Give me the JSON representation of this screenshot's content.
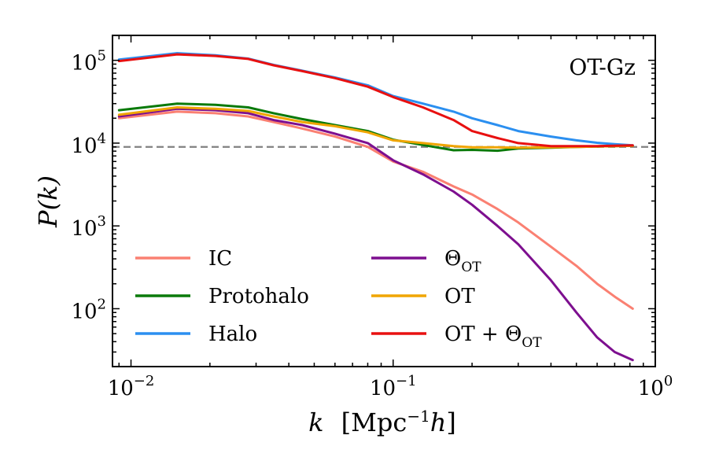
{
  "chart_data": {
    "type": "line",
    "annotation": "OT-Gz",
    "xlabel": {
      "main": "k",
      "bracket_open": "[Mpc",
      "sup": "−1",
      "italic": "h",
      "bracket_close": "]"
    },
    "ylabel": "P(k)",
    "xscale": "log",
    "yscale": "log",
    "xlim": [
      0.0085,
      1.0
    ],
    "ylim": [
      20,
      200000
    ],
    "x_ticks": [
      {
        "value": 0.01,
        "base": "10",
        "exp": "−2"
      },
      {
        "value": 0.1,
        "base": "10",
        "exp": "−1"
      },
      {
        "value": 1.0,
        "base": "10",
        "exp": "0"
      }
    ],
    "y_ticks": [
      {
        "value": 100,
        "base": "10",
        "exp": "2"
      },
      {
        "value": 1000,
        "base": "10",
        "exp": "3"
      },
      {
        "value": 10000,
        "base": "10",
        "exp": "4"
      },
      {
        "value": 100000,
        "base": "10",
        "exp": "5"
      }
    ],
    "reference_line": {
      "y": 9000,
      "style": "dashed",
      "color": "#808080"
    },
    "legend_position": "lower-left",
    "x": [
      0.009,
      0.015,
      0.021,
      0.028,
      0.035,
      0.045,
      0.06,
      0.08,
      0.1,
      0.13,
      0.17,
      0.2,
      0.25,
      0.3,
      0.4,
      0.5,
      0.6,
      0.7,
      0.82
    ],
    "series": [
      {
        "name": "IC",
        "label": "IC",
        "color": "#fa8072",
        "values": [
          20000,
          24000,
          23000,
          21000,
          18000,
          15000,
          12000,
          9000,
          6000,
          4500,
          3000,
          2400,
          1600,
          1100,
          560,
          330,
          200,
          140,
          100
        ]
      },
      {
        "name": "Protohalo",
        "label": "Protohalo",
        "color": "#0a7a0a",
        "values": [
          25000,
          30000,
          29000,
          27000,
          23000,
          19500,
          16500,
          14000,
          11000,
          9500,
          8200,
          8300,
          8100,
          8600,
          8800,
          9000,
          9100,
          9200,
          9300
        ]
      },
      {
        "name": "Halo",
        "label": "Halo",
        "color": "#2b8ff0",
        "values": [
          102000,
          122000,
          115000,
          105000,
          88000,
          75000,
          62000,
          50000,
          37000,
          30000,
          24000,
          20000,
          16500,
          14000,
          12000,
          10800,
          10100,
          9700,
          9400
        ]
      },
      {
        "name": "Theta_OT",
        "label": "Θ",
        "sub": "OT",
        "color": "#7d0f8f",
        "values": [
          21000,
          26000,
          25000,
          23000,
          19000,
          16500,
          13000,
          10000,
          6200,
          4200,
          2600,
          1800,
          1000,
          600,
          220,
          90,
          45,
          30,
          24
        ]
      },
      {
        "name": "OT",
        "label": "OT",
        "color": "#f0a500",
        "values": [
          22000,
          27000,
          26000,
          24500,
          21000,
          18000,
          16000,
          13500,
          10800,
          10000,
          9200,
          8900,
          8900,
          8800,
          8900,
          9000,
          9100,
          9200,
          9300
        ]
      },
      {
        "name": "OT_plus_Theta_OT",
        "label": "OT + Θ",
        "sub": "OT",
        "color": "#e81010",
        "values": [
          98000,
          118000,
          113000,
          104000,
          87000,
          74000,
          61000,
          48000,
          36000,
          27000,
          19000,
          14000,
          11500,
          10000,
          9200,
          9200,
          9200,
          9300,
          9400
        ]
      }
    ]
  }
}
